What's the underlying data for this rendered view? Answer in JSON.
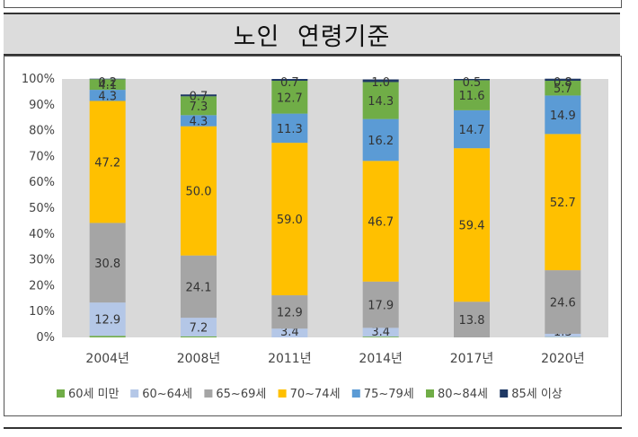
{
  "header": {
    "title": "노인 연령기준"
  },
  "chart_data": {
    "type": "bar",
    "stacked": true,
    "categories": [
      "2004년",
      "2008년",
      "2011년",
      "2014년",
      "2017년",
      "2020년"
    ],
    "series": [
      {
        "name": "60세 미만",
        "color": "#70ad47",
        "values": [
          0.6,
          0.4,
          0.0,
          0.3,
          0.0,
          0.1
        ]
      },
      {
        "name": "60~64세",
        "color": "#b4c7e7",
        "values": [
          12.9,
          7.2,
          3.4,
          3.4,
          0.0,
          1.3
        ]
      },
      {
        "name": "65~69세",
        "color": "#a5a5a5",
        "values": [
          30.8,
          24.1,
          12.9,
          17.9,
          13.8,
          24.6
        ]
      },
      {
        "name": "70~74세",
        "color": "#ffc000",
        "values": [
          47.2,
          50.0,
          59.0,
          46.7,
          59.4,
          52.7
        ]
      },
      {
        "name": "75~79세",
        "color": "#5b9bd5",
        "values": [
          4.3,
          4.3,
          11.3,
          16.2,
          14.7,
          14.9
        ]
      },
      {
        "name": "80~84세",
        "color": "#70ad47",
        "values": [
          4.1,
          7.3,
          12.7,
          14.3,
          11.6,
          5.7
        ]
      },
      {
        "name": "85세 이상",
        "color": "#1f3864",
        "values": [
          0.2,
          0.7,
          0.7,
          1.0,
          0.5,
          0.8
        ]
      }
    ],
    "data_labels": [
      [
        "0.6",
        "12.9",
        "30.8",
        "47.2",
        "4.3",
        "4.1",
        "0.2"
      ],
      [
        "0.4",
        "7.2",
        "24.1",
        "50.0",
        "4.3",
        "7.3",
        "0.7"
      ],
      [
        "0.0",
        "3.4",
        "12.9",
        "59.0",
        "11.3",
        "12.7",
        "0.7"
      ],
      [
        "0.3",
        "3.4",
        "17.9",
        "46.7",
        "16.2",
        "14.3",
        "1.0"
      ],
      [
        "0.0",
        "0.0",
        "13.8",
        "59.4",
        "14.7",
        "11.6",
        "0.5"
      ],
      [
        "0.1",
        "1.3",
        "24.6",
        "52.7",
        "14.9",
        "5.7",
        "0.8"
      ]
    ],
    "y_ticks": [
      "0%",
      "10%",
      "20%",
      "30%",
      "40%",
      "50%",
      "60%",
      "70%",
      "80%",
      "90%",
      "100%"
    ],
    "ylim": [
      0,
      100
    ],
    "legend_position": "bottom",
    "plot_background": "#d9d9d9"
  }
}
